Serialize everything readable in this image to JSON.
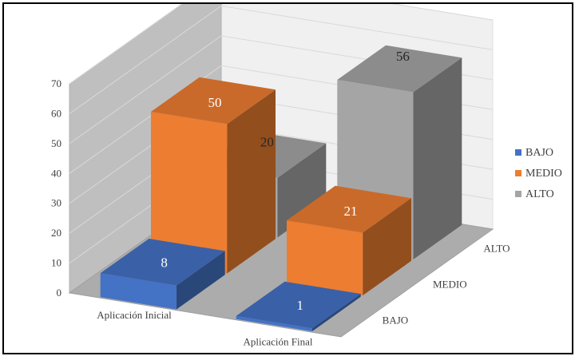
{
  "chart_data": {
    "type": "bar",
    "subtype": "3d-column",
    "title": "",
    "categories": [
      "Aplicación Inicial",
      "Aplicación Final"
    ],
    "depth_categories": [
      "BAJO",
      "MEDIO",
      "ALTO"
    ],
    "series": [
      {
        "name": "BAJO",
        "color": "#4472C4",
        "values": [
          8,
          1
        ]
      },
      {
        "name": "MEDIO",
        "color": "#ED7D31",
        "values": [
          50,
          21
        ]
      },
      {
        "name": "ALTO",
        "color": "#A5A5A5",
        "values": [
          20,
          56
        ]
      }
    ],
    "ylim": [
      0,
      70
    ],
    "yticks": [
      "0",
      "10",
      "20",
      "30",
      "40",
      "50",
      "60",
      "70"
    ],
    "grid": true,
    "legend_position": "right"
  }
}
